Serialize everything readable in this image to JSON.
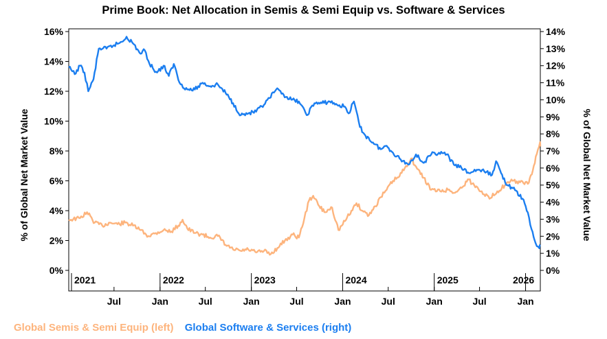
{
  "chart_data": {
    "type": "line",
    "title": "Prime Book: Net Allocation in Semis & Semi Equip vs. Software & Services",
    "y_left_label": "% of Global Net Market Value",
    "y_right_label": "% of Global Net Market Value",
    "y_left_ticks": [
      "0%",
      "2%",
      "4%",
      "6%",
      "8%",
      "10%",
      "12%",
      "14%",
      "16%"
    ],
    "y_right_ticks": [
      "0%",
      "1%",
      "2%",
      "3%",
      "4%",
      "5%",
      "6%",
      "7%",
      "8%",
      "9%",
      "10%",
      "11%",
      "12%",
      "13%",
      "14%"
    ],
    "ylim_left": [
      0,
      16
    ],
    "ylim_right": [
      0,
      14
    ],
    "x_range": [
      "2021-01-01",
      "2026-03-01"
    ],
    "year_labels": [
      {
        "date": "2021-01-01",
        "label": "2021"
      },
      {
        "date": "2022-01-01",
        "label": "2022"
      },
      {
        "date": "2023-01-01",
        "label": "2023"
      },
      {
        "date": "2024-01-01",
        "label": "2024"
      },
      {
        "date": "2025-01-01",
        "label": "2025"
      },
      {
        "date": "2026-01-01",
        "label": "2026"
      }
    ],
    "month_labels": [
      {
        "date": "2021-07-01",
        "label": "Jul"
      },
      {
        "date": "2022-01-01",
        "label": "Jan"
      },
      {
        "date": "2022-07-01",
        "label": "Jul"
      },
      {
        "date": "2023-01-01",
        "label": "Jan"
      },
      {
        "date": "2023-07-01",
        "label": "Jul"
      },
      {
        "date": "2024-01-01",
        "label": "Jan"
      },
      {
        "date": "2024-07-01",
        "label": "Jul"
      },
      {
        "date": "2025-01-01",
        "label": "Jan"
      },
      {
        "date": "2025-07-01",
        "label": "Jul"
      },
      {
        "date": "2026-01-01",
        "label": "Jan"
      }
    ],
    "legend_placement": "bottom-left",
    "series": [
      {
        "name": "Global Semis & Semi Equip (left)",
        "axis": "left",
        "color": "#fdb47d",
        "points": [
          [
            "2021-01-01",
            3.4
          ],
          [
            "2021-02-15",
            3.5
          ],
          [
            "2021-03-15",
            3.9
          ],
          [
            "2021-04-15",
            3.2
          ],
          [
            "2021-05-15",
            3.0
          ],
          [
            "2021-06-15",
            3.2
          ],
          [
            "2021-07-15",
            3.1
          ],
          [
            "2021-08-15",
            3.2
          ],
          [
            "2021-09-15",
            3.0
          ],
          [
            "2021-10-15",
            2.7
          ],
          [
            "2021-11-15",
            2.3
          ],
          [
            "2021-12-15",
            2.5
          ],
          [
            "2022-01-15",
            2.7
          ],
          [
            "2022-02-15",
            2.6
          ],
          [
            "2022-03-15",
            3.0
          ],
          [
            "2022-04-01",
            3.4
          ],
          [
            "2022-04-20",
            2.8
          ],
          [
            "2022-05-20",
            2.5
          ],
          [
            "2022-06-20",
            2.4
          ],
          [
            "2022-07-20",
            2.2
          ],
          [
            "2022-08-20",
            2.3
          ],
          [
            "2022-09-20",
            1.7
          ],
          [
            "2022-10-20",
            1.4
          ],
          [
            "2022-11-20",
            1.3
          ],
          [
            "2022-12-20",
            1.4
          ],
          [
            "2023-01-20",
            1.2
          ],
          [
            "2023-02-20",
            1.3
          ],
          [
            "2023-03-20",
            1.1
          ],
          [
            "2023-04-15",
            1.5
          ],
          [
            "2023-05-15",
            2.0
          ],
          [
            "2023-06-15",
            2.4
          ],
          [
            "2023-07-10",
            2.2
          ],
          [
            "2023-08-01",
            3.5
          ],
          [
            "2023-08-20",
            4.7
          ],
          [
            "2023-09-05",
            5.0
          ],
          [
            "2023-09-25",
            4.4
          ],
          [
            "2023-10-20",
            3.9
          ],
          [
            "2023-11-20",
            4.2
          ],
          [
            "2023-12-15",
            2.7
          ],
          [
            "2024-01-10",
            3.3
          ],
          [
            "2024-02-05",
            4.0
          ],
          [
            "2024-02-25",
            4.5
          ],
          [
            "2024-03-20",
            4.0
          ],
          [
            "2024-04-15",
            3.7
          ],
          [
            "2024-05-10",
            4.3
          ],
          [
            "2024-06-01",
            4.9
          ],
          [
            "2024-06-25",
            5.4
          ],
          [
            "2024-07-20",
            6.0
          ],
          [
            "2024-08-15",
            6.3
          ],
          [
            "2024-09-10",
            7.0
          ],
          [
            "2024-10-01",
            7.5
          ],
          [
            "2024-10-25",
            6.8
          ],
          [
            "2024-11-20",
            6.2
          ],
          [
            "2024-12-20",
            5.4
          ],
          [
            "2025-01-25",
            5.3
          ],
          [
            "2025-02-25",
            5.4
          ],
          [
            "2025-03-25",
            5.2
          ],
          [
            "2025-04-25",
            5.6
          ],
          [
            "2025-05-15",
            6.1
          ],
          [
            "2025-06-10",
            5.7
          ],
          [
            "2025-07-10",
            5.3
          ],
          [
            "2025-08-10",
            4.8
          ],
          [
            "2025-09-10",
            5.3
          ],
          [
            "2025-10-10",
            5.7
          ],
          [
            "2025-11-10",
            6.0
          ],
          [
            "2025-12-10",
            5.9
          ],
          [
            "2026-01-10",
            5.8
          ],
          [
            "2026-01-30",
            6.7
          ],
          [
            "2026-02-15",
            7.8
          ],
          [
            "2026-02-28",
            8.6
          ],
          [
            "2026-03-01",
            8.3
          ]
        ]
      },
      {
        "name": "Global Software & Services (right)",
        "axis": "right",
        "color": "#1b7ef0",
        "points": [
          [
            "2021-01-01",
            11.9
          ],
          [
            "2021-01-25",
            11.5
          ],
          [
            "2021-02-15",
            12.0
          ],
          [
            "2021-03-05",
            11.6
          ],
          [
            "2021-03-20",
            10.5
          ],
          [
            "2021-04-10",
            11.2
          ],
          [
            "2021-05-01",
            13.0
          ],
          [
            "2021-06-01",
            13.0
          ],
          [
            "2021-07-01",
            13.2
          ],
          [
            "2021-08-01",
            13.4
          ],
          [
            "2021-08-20",
            13.7
          ],
          [
            "2021-09-15",
            13.3
          ],
          [
            "2021-10-15",
            12.7
          ],
          [
            "2021-11-01",
            12.9
          ],
          [
            "2021-11-20",
            12.1
          ],
          [
            "2021-12-20",
            11.6
          ],
          [
            "2022-01-15",
            12.0
          ],
          [
            "2022-02-05",
            11.4
          ],
          [
            "2022-02-25",
            12.1
          ],
          [
            "2022-03-20",
            11.0
          ],
          [
            "2022-04-20",
            10.6
          ],
          [
            "2022-05-20",
            10.6
          ],
          [
            "2022-06-20",
            11.0
          ],
          [
            "2022-07-20",
            10.8
          ],
          [
            "2022-08-20",
            10.9
          ],
          [
            "2022-09-20",
            10.4
          ],
          [
            "2022-10-20",
            9.8
          ],
          [
            "2022-11-20",
            9.1
          ],
          [
            "2022-12-20",
            9.2
          ],
          [
            "2023-01-20",
            9.3
          ],
          [
            "2023-02-20",
            9.7
          ],
          [
            "2023-03-15",
            10.1
          ],
          [
            "2023-04-10",
            10.6
          ],
          [
            "2023-05-10",
            10.3
          ],
          [
            "2023-06-10",
            10.0
          ],
          [
            "2023-07-10",
            9.9
          ],
          [
            "2023-08-10",
            9.1
          ],
          [
            "2023-09-10",
            9.8
          ],
          [
            "2023-10-10",
            9.8
          ],
          [
            "2023-11-10",
            9.9
          ],
          [
            "2023-12-10",
            9.7
          ],
          [
            "2024-01-10",
            9.6
          ],
          [
            "2024-01-25",
            9.2
          ],
          [
            "2024-02-15",
            9.9
          ],
          [
            "2024-03-10",
            8.4
          ],
          [
            "2024-04-01",
            7.9
          ],
          [
            "2024-05-01",
            7.5
          ],
          [
            "2024-06-01",
            7.1
          ],
          [
            "2024-06-25",
            7.3
          ],
          [
            "2024-07-20",
            6.9
          ],
          [
            "2024-08-20",
            6.5
          ],
          [
            "2024-09-20",
            6.2
          ],
          [
            "2024-10-20",
            6.8
          ],
          [
            "2024-11-20",
            6.3
          ],
          [
            "2024-12-20",
            6.8
          ],
          [
            "2025-01-20",
            6.9
          ],
          [
            "2025-02-20",
            6.8
          ],
          [
            "2025-03-20",
            6.2
          ],
          [
            "2025-04-20",
            6.0
          ],
          [
            "2025-05-20",
            5.7
          ],
          [
            "2025-06-20",
            5.9
          ],
          [
            "2025-07-20",
            5.8
          ],
          [
            "2025-08-20",
            5.6
          ],
          [
            "2025-09-05",
            6.4
          ],
          [
            "2025-09-25",
            5.7
          ],
          [
            "2025-10-20",
            5.0
          ],
          [
            "2025-11-20",
            4.7
          ],
          [
            "2025-12-20",
            4.2
          ],
          [
            "2026-01-10",
            3.4
          ],
          [
            "2026-01-25",
            2.4
          ],
          [
            "2026-02-10",
            1.6
          ],
          [
            "2026-02-25",
            1.3
          ],
          [
            "2026-03-01",
            1.5
          ]
        ]
      }
    ]
  }
}
